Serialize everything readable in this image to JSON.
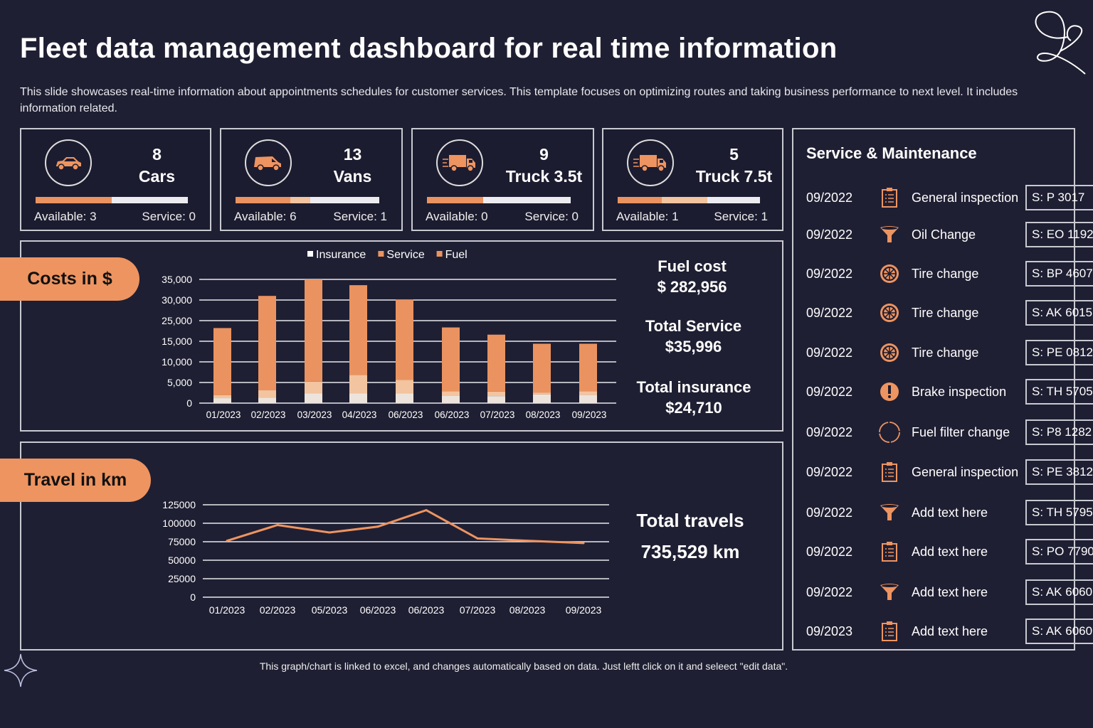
{
  "title": "Fleet data management dashboard for real time information",
  "subtitle": "This slide showcases real-time information about appointments schedules for customer services. This template focuses on optimizing routes and taking business performance to next level. It includes information related.",
  "colors": {
    "background": "#1f1f33",
    "accent": "#ee9460",
    "accent_light": "#f2c49f",
    "insurance": "#ece4dc"
  },
  "vehicles": [
    {
      "icon": "car-icon",
      "count": "8",
      "type": "Cars",
      "available": "Available: 3",
      "service": "Service: 0",
      "available_fraction": 0.5,
      "service_fraction": 0
    },
    {
      "icon": "van-icon",
      "count": "13",
      "type": "Vans",
      "available": "Available: 6",
      "service": "Service: 1",
      "available_fraction": 0.38,
      "service_fraction": 0.14
    },
    {
      "icon": "truck-icon",
      "count": "9",
      "type": "Truck 3.5t",
      "available": "Available: 0",
      "service": "Service: 0",
      "available_fraction": 0.39,
      "service_fraction": 0
    },
    {
      "icon": "truck-icon",
      "count": "5",
      "type": "Truck 7.5t",
      "available": "Available: 1",
      "service": "Service: 1",
      "available_fraction": 0.31,
      "service_fraction": 0.32
    }
  ],
  "costs": {
    "label": "Costs in $",
    "stats": [
      {
        "label": "Fuel cost",
        "value": "$ 282,956"
      },
      {
        "label": "Total Service",
        "value": "$35,996"
      },
      {
        "label": "Total insurance",
        "value": "$24,710"
      }
    ]
  },
  "travel": {
    "label": "Travel in km",
    "stats_label": "Total travels",
    "stats_value": "735,529 km"
  },
  "chart_data": [
    {
      "type": "bar",
      "stacked": true,
      "legend_position": "top",
      "grid": true,
      "categories": [
        "01/2023",
        "02/2023",
        "03/2023",
        "04/2023",
        "06/2023",
        "06/2023",
        "07/2023",
        "08/2023",
        "09/2023"
      ],
      "y_ticks": [
        "0",
        "5,000",
        "10,000",
        "15,000",
        "25,000",
        "30,000",
        "35,000"
      ],
      "series": [
        {
          "name": "Insurance",
          "color": "#ece4dc",
          "values": [
            1200,
            1300,
            2400,
            2400,
            2400,
            1800,
            1700,
            2100,
            2000
          ]
        },
        {
          "name": "Service",
          "color": "#f2c49f",
          "values": [
            700,
            1800,
            2800,
            4400,
            3200,
            1100,
            1100,
            400,
            900
          ]
        },
        {
          "name": "Fuel",
          "color": "#ea9360",
          "values": [
            19500,
            27900,
            29800,
            26800,
            24500,
            18800,
            15400,
            11900,
            11500
          ]
        }
      ]
    },
    {
      "type": "line",
      "grid": true,
      "categories": [
        "01/2023",
        "02/2023",
        "05/2023",
        "06/2023",
        "06/2023",
        "07/2023",
        "08/2023",
        "09/2023"
      ],
      "y_ticks": [
        "0",
        "25000",
        "50000",
        "75000",
        "100000",
        "125000"
      ],
      "ylim": [
        0,
        125000
      ],
      "series": [
        {
          "color": "#ee9460",
          "values": [
            76300,
            97600,
            87500,
            95400,
            117700,
            79500,
            76300,
            73200
          ]
        }
      ]
    }
  ],
  "service": {
    "title": "Service & Maintenance",
    "items": [
      {
        "date": "09/2022",
        "icon": "clipboard-icon",
        "task": "General inspection",
        "code": "S: P 3017"
      },
      {
        "date": "09/2022",
        "icon": "funnel-icon",
        "task": "Oil Change",
        "code": "S: EO 1192"
      },
      {
        "date": "09/2022",
        "icon": "tire-icon",
        "task": "Tire change",
        "code": "S: BP 4607"
      },
      {
        "date": "09/2022",
        "icon": "tire-icon",
        "task": "Tire change",
        "code": "S: AK 6015"
      },
      {
        "date": "09/2022",
        "icon": "tire-icon",
        "task": "Tire change",
        "code": "S: PE 0812"
      },
      {
        "date": "09/2022",
        "icon": "alert-icon",
        "task": "Brake inspection",
        "code": "S: TH 5705"
      },
      {
        "date": "09/2022",
        "icon": "ring-icon",
        "task": "Fuel filter change",
        "code": "S: P8 1282"
      },
      {
        "date": "09/2022",
        "icon": "clipboard-icon",
        "task": "General inspection",
        "code": "S: PE 3812"
      },
      {
        "date": "09/2022",
        "icon": "funnel-icon",
        "task": "Add text here",
        "code": "S: TH 5795"
      },
      {
        "date": "09/2022",
        "icon": "clipboard-icon",
        "task": "Add text here",
        "code": "S: PO 7790"
      },
      {
        "date": "09/2022",
        "icon": "funnel-icon",
        "task": "Add text here",
        "code": "S: AK 6060"
      },
      {
        "date": "09/2023",
        "icon": "clipboard-icon",
        "task": "Add text here",
        "code": "S: AK 6060"
      }
    ]
  },
  "footer": "This graph/chart is linked to excel, and changes automatically based on data. Just leftt click on it and seleect \"edit data\"."
}
